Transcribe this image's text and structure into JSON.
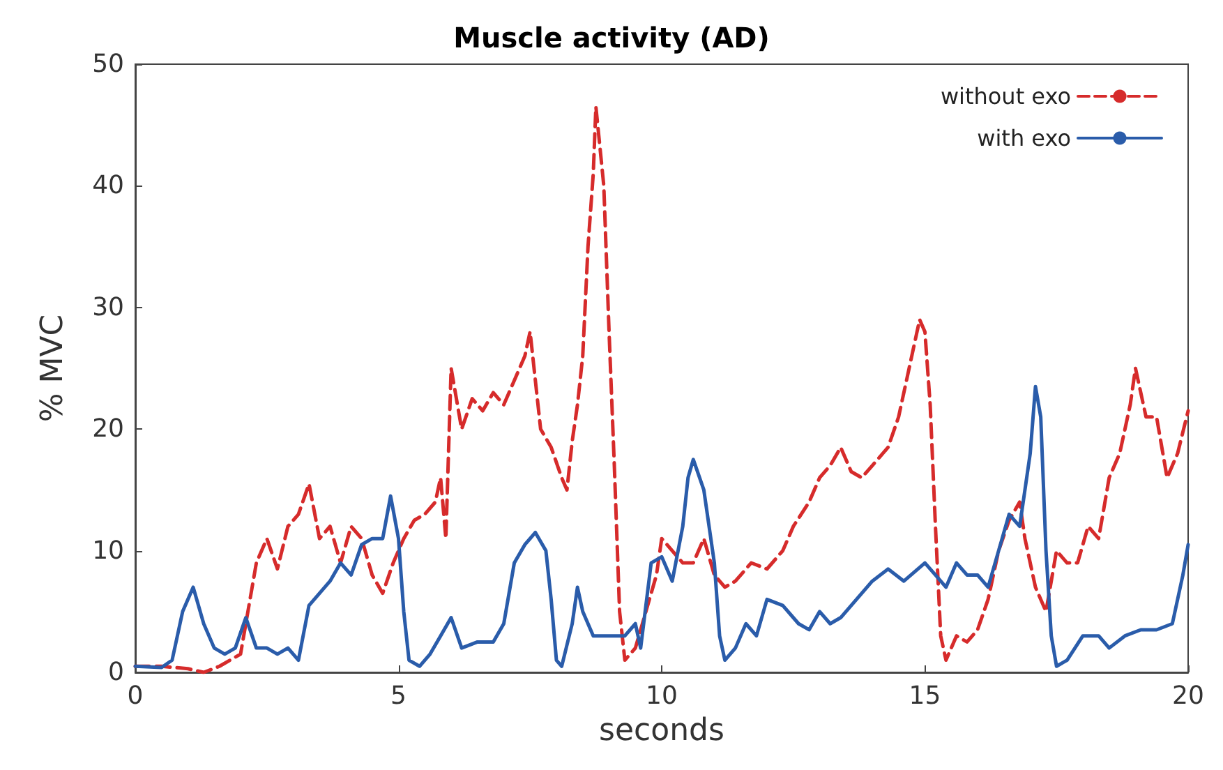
{
  "chart_data": {
    "type": "line",
    "title": "Muscle activity (AD)",
    "xlabel": "seconds",
    "ylabel": "% MVC",
    "xlim": [
      0,
      20
    ],
    "xticks": [
      0,
      5,
      10,
      15,
      20
    ],
    "ylim": [
      0,
      50
    ],
    "yticks": [
      0,
      10,
      20,
      30,
      40,
      50
    ],
    "grid": false,
    "legend": "top right",
    "marker": "none",
    "series": [
      {
        "name": "without exo",
        "color": "#d62b2b",
        "line_style": "dashed",
        "x": [
          0,
          0.5,
          1,
          1.3,
          1.6,
          2,
          2.1,
          2.3,
          2.5,
          2.7,
          2.9,
          3.1,
          3.3,
          3.5,
          3.7,
          3.9,
          4.1,
          4.3,
          4.5,
          4.7,
          4.9,
          5.1,
          5.3,
          5.5,
          5.7,
          5.8,
          5.9,
          6,
          6.2,
          6.4,
          6.6,
          6.8,
          7,
          7.2,
          7.4,
          7.5,
          7.6,
          7.7,
          7.9,
          8.1,
          8.2,
          8.3,
          8.4,
          8.5,
          8.6,
          8.7,
          8.75,
          8.9,
          9,
          9.1,
          9.2,
          9.3,
          9.5,
          9.7,
          9.9,
          10,
          10.2,
          10.4,
          10.6,
          10.8,
          11,
          11.2,
          11.4,
          11.7,
          12,
          12.3,
          12.5,
          12.8,
          13,
          13.2,
          13.4,
          13.6,
          13.8,
          14,
          14.3,
          14.5,
          14.7,
          14.9,
          15,
          15.1,
          15.2,
          15.3,
          15.4,
          15.6,
          15.8,
          16,
          16.2,
          16.4,
          16.6,
          16.8,
          16.9,
          17.1,
          17.3,
          17.5,
          17.7,
          17.9,
          18.1,
          18.3,
          18.5,
          18.7,
          18.9,
          19,
          19.2,
          19.4,
          19.6,
          19.8,
          20
        ],
        "values": [
          0.5,
          0.5,
          0.3,
          0,
          0.5,
          1.5,
          4,
          9,
          11,
          8.5,
          12,
          13,
          15.5,
          11,
          12,
          9,
          12,
          11,
          8,
          6.5,
          9,
          11,
          12.5,
          13,
          14,
          16,
          11,
          25,
          20,
          22.5,
          21.5,
          23,
          22,
          24,
          26,
          28,
          24,
          20,
          18.5,
          16,
          15,
          19,
          22,
          26,
          35,
          41,
          46.5,
          40,
          28,
          17,
          5,
          1,
          2,
          5,
          8,
          11,
          10,
          9,
          9,
          11,
          8,
          7,
          7.5,
          9,
          8.5,
          10,
          12,
          14,
          16,
          17,
          18.5,
          16.5,
          16,
          17,
          18.5,
          21,
          25,
          29,
          28,
          22,
          12,
          3,
          1,
          3,
          2.5,
          3.5,
          6,
          10,
          12.5,
          14,
          11,
          7,
          5,
          10,
          9,
          9,
          12,
          11,
          16,
          18,
          22,
          25,
          21,
          21,
          16,
          18,
          21.5
        ]
      },
      {
        "name": "with exo",
        "color": "#2a5caa",
        "line_style": "solid",
        "x": [
          0,
          0.5,
          0.7,
          0.9,
          1.1,
          1.3,
          1.5,
          1.7,
          1.9,
          2.1,
          2.3,
          2.5,
          2.7,
          2.9,
          3.1,
          3.3,
          3.5,
          3.7,
          3.9,
          4.1,
          4.3,
          4.5,
          4.7,
          4.85,
          5,
          5.1,
          5.2,
          5.4,
          5.6,
          5.8,
          6,
          6.2,
          6.5,
          6.8,
          7,
          7.2,
          7.4,
          7.6,
          7.8,
          7.9,
          8,
          8.1,
          8.3,
          8.4,
          8.5,
          8.7,
          9,
          9.3,
          9.5,
          9.6,
          9.8,
          10,
          10.2,
          10.4,
          10.5,
          10.6,
          10.8,
          11,
          11.1,
          11.2,
          11.4,
          11.6,
          11.8,
          12,
          12.3,
          12.6,
          12.8,
          13,
          13.2,
          13.4,
          13.7,
          14,
          14.3,
          14.6,
          15,
          15.2,
          15.4,
          15.6,
          15.8,
          16,
          16.2,
          16.4,
          16.6,
          16.8,
          17,
          17.1,
          17.2,
          17.3,
          17.4,
          17.5,
          17.7,
          18,
          18.3,
          18.5,
          18.8,
          19.1,
          19.4,
          19.7,
          19.9,
          20
        ],
        "values": [
          0.5,
          0.4,
          1,
          5,
          7,
          4,
          2,
          1.5,
          2,
          4.5,
          2,
          2,
          1.5,
          2,
          1,
          5.5,
          6.5,
          7.5,
          9,
          8,
          10.5,
          11,
          11,
          14.5,
          11,
          5,
          1,
          0.5,
          1.5,
          3,
          4.5,
          2,
          2.5,
          2.5,
          4,
          9,
          10.5,
          11.5,
          10,
          6,
          1,
          0.5,
          4,
          7,
          5,
          3,
          3,
          3,
          4,
          2,
          9,
          9.5,
          7.5,
          12,
          16,
          17.5,
          15,
          9,
          3,
          1,
          2,
          4,
          3,
          6,
          5.5,
          4,
          3.5,
          5,
          4,
          4.5,
          6,
          7.5,
          8.5,
          7.5,
          9,
          8,
          7,
          9,
          8,
          8,
          7,
          10,
          13,
          12,
          18,
          23.5,
          21,
          10,
          3,
          0.5,
          1,
          3,
          3,
          2,
          3,
          3.5,
          3.5,
          4,
          8,
          10.5
        ]
      }
    ]
  }
}
